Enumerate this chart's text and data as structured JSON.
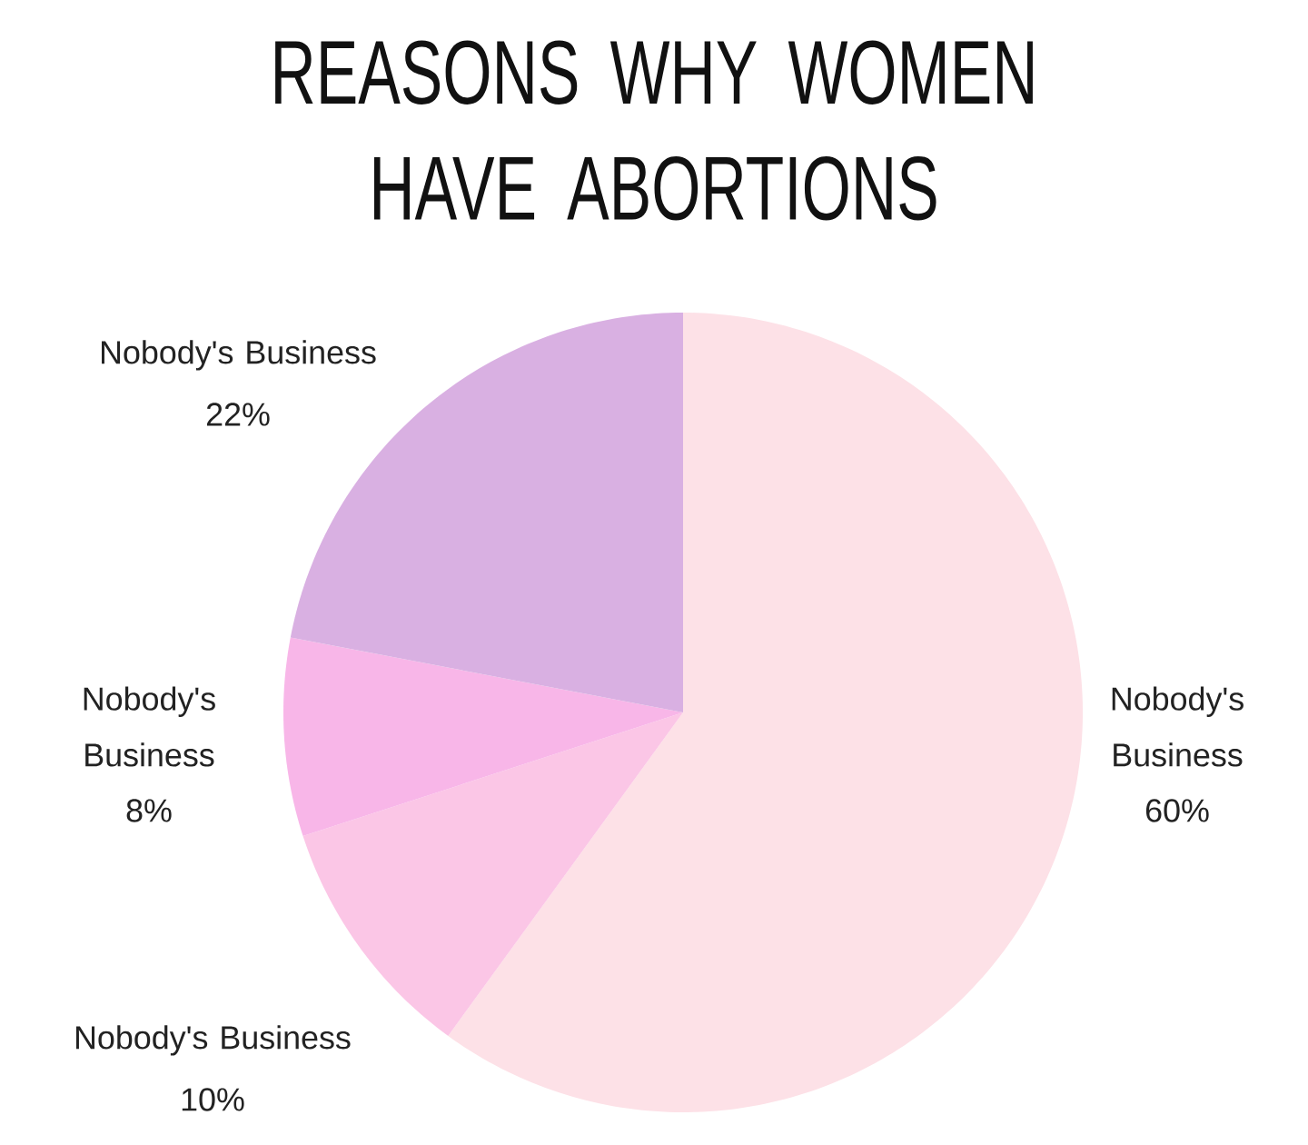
{
  "chart_data": {
    "type": "pie",
    "title": "REASONS WHY WOMEN HAVE ABORTIONS",
    "categories": [
      "Nobody's Business",
      "Nobody's Business",
      "Nobody's Business",
      "Nobody's Business"
    ],
    "values": [
      60,
      10,
      8,
      22
    ],
    "colors": [
      "#fde1e7",
      "#fbc6e6",
      "#f8b6e8",
      "#d9b0e2"
    ],
    "value_labels": [
      "60%",
      "10%",
      "8%",
      "22%"
    ]
  }
}
